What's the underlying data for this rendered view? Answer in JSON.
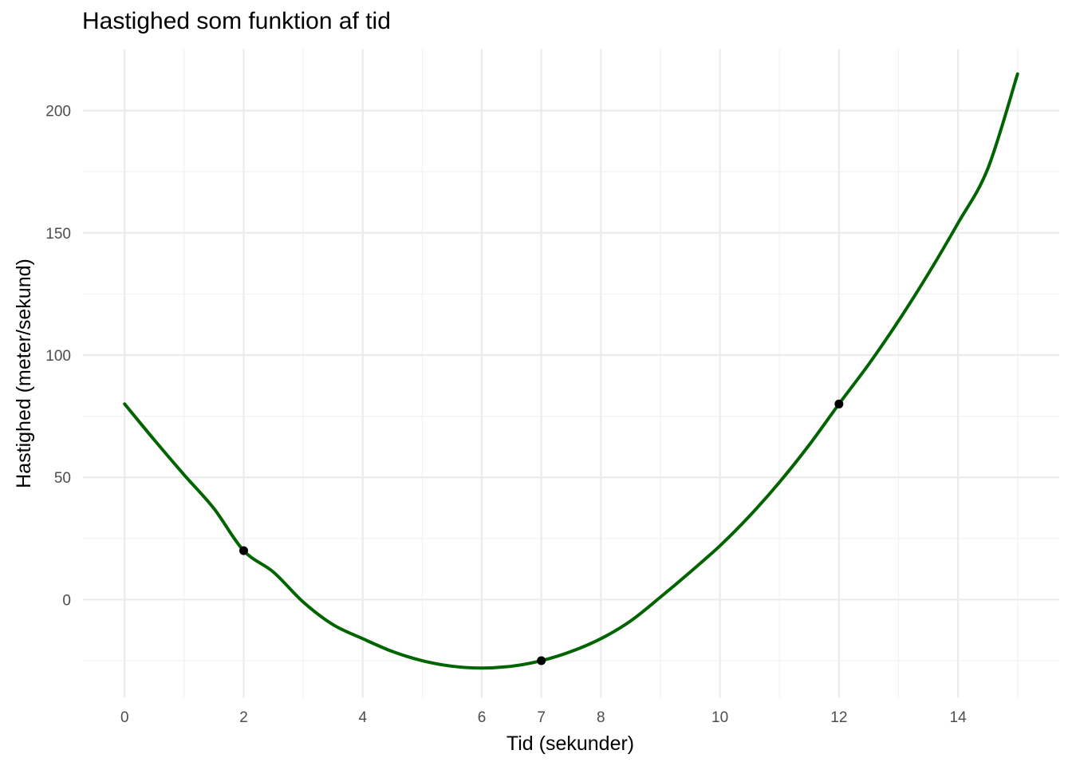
{
  "chart_data": {
    "type": "line",
    "title": "Hastighed som funktion af tid",
    "xlabel": "Tid (sekunder)",
    "ylabel": "Hastighed (meter/sekund)",
    "xlim": [
      -0.7,
      15.7
    ],
    "ylim": [
      -40,
      225
    ],
    "x_ticks": [
      0,
      2,
      4,
      6,
      7,
      8,
      10,
      12,
      14
    ],
    "y_ticks": [
      0,
      50,
      100,
      150,
      200
    ],
    "x_minor_grid": [
      1,
      3,
      5,
      9,
      11,
      13,
      15
    ],
    "y_minor_grid": [
      -25,
      25,
      75,
      125,
      175
    ],
    "grid": true,
    "curve": {
      "x": [
        0,
        0.5,
        1,
        1.5,
        2,
        2.5,
        3,
        3.5,
        4,
        4.5,
        5,
        5.5,
        6,
        6.5,
        7,
        7.5,
        8,
        8.5,
        9,
        9.5,
        10,
        10.5,
        11,
        11.5,
        12,
        12.5,
        13,
        13.5,
        14,
        14.5,
        15
      ],
      "y": [
        80,
        65.25,
        51,
        37.25,
        20,
        11.25,
        -1,
        -10.25,
        -16,
        -21.25,
        -25,
        -27.25,
        -28,
        -27.25,
        -25,
        -21.25,
        -16,
        -8.75,
        1,
        11.25,
        22,
        34.25,
        48,
        63.25,
        80,
        96.25,
        114,
        133.25,
        154,
        176.25,
        215
      ],
      "color": "#006400"
    },
    "points": {
      "x": [
        2,
        7,
        12
      ],
      "y": [
        20,
        -25,
        80
      ],
      "color": "#000000"
    }
  }
}
